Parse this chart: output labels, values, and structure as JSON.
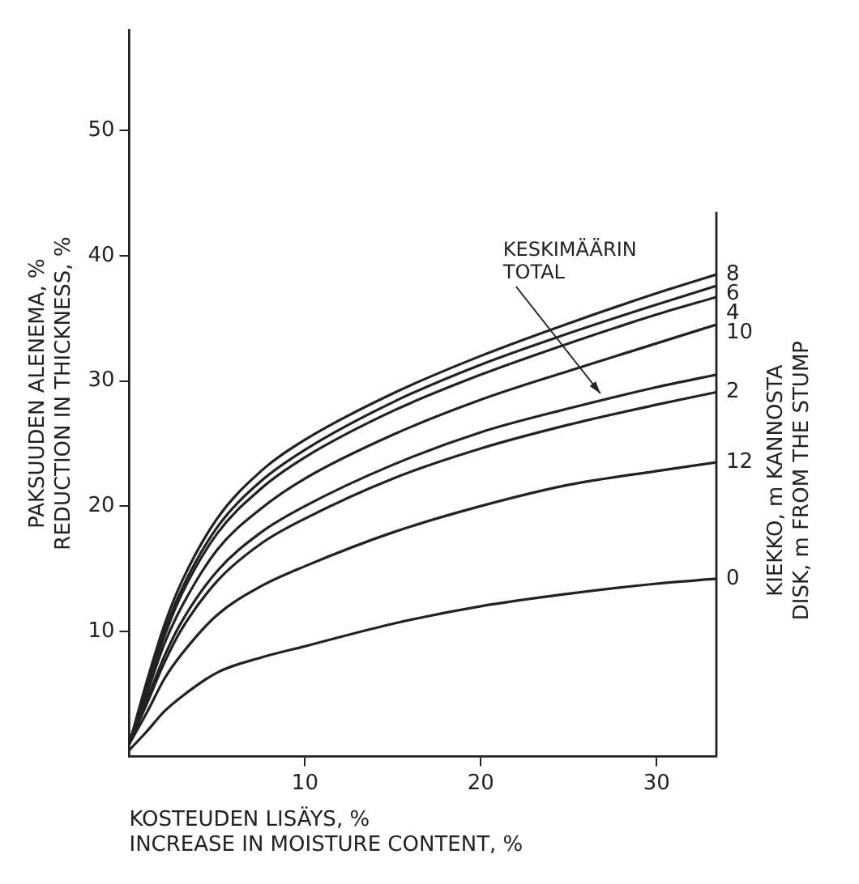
{
  "chart_data": {
    "type": "line",
    "xlabel": "KOSTEUDEN LISÄYS, %\nINCREASE IN MOISTURE CONTENT, %",
    "ylabel": "PAKSUUDEN ALENEMA, %\nREDUCTION IN THICKNESS, %",
    "legend_title": "KIEKKO, m KANNOSTA\nDISK, m FROM THE STUMP",
    "x": [
      0,
      1,
      2,
      3,
      5,
      7.5,
      10,
      15,
      20,
      25,
      30,
      33.4
    ],
    "series": [
      {
        "name": "8",
        "color": "#222222",
        "values": [
          1,
          6,
          10.5,
          14,
          19,
          22.8,
          25.3,
          29,
          32,
          34.6,
          37,
          38.5
        ]
      },
      {
        "name": "6",
        "color": "#222222",
        "values": [
          1,
          5.6,
          10,
          13.4,
          18.3,
          22,
          24.5,
          28.3,
          31.3,
          33.8,
          36.1,
          37.6
        ]
      },
      {
        "name": "4",
        "color": "#222222",
        "values": [
          1,
          5.4,
          9.6,
          13,
          17.8,
          21.4,
          23.9,
          27.6,
          30.5,
          33,
          35.3,
          36.7
        ]
      },
      {
        "name": "10",
        "color": "#222222",
        "values": [
          1,
          5,
          9,
          12,
          16.5,
          19.8,
          22.2,
          25.7,
          28.5,
          30.8,
          33,
          34.5
        ]
      },
      {
        "color": "#222222",
        "values": [
          1,
          4.5,
          8,
          10.8,
          14.8,
          17.9,
          20,
          23.3,
          25.9,
          27.8,
          29.5,
          30.5
        ]
      },
      {
        "name": "2",
        "color": "#222222",
        "values": [
          1,
          4.2,
          7.5,
          10.2,
          14,
          17,
          19,
          22.2,
          24.6,
          26.5,
          28.1,
          29.1
        ]
      },
      {
        "name": "12",
        "color": "#222222",
        "values": [
          1,
          3.5,
          6.2,
          8.2,
          11.3,
          13.6,
          15.2,
          17.9,
          20,
          21.7,
          22.8,
          23.5
        ]
      },
      {
        "name": "0",
        "color": "#222222",
        "values": [
          0.5,
          2,
          3.6,
          4.8,
          6.7,
          7.9,
          8.8,
          10.6,
          12,
          13,
          13.8,
          14.2
        ]
      }
    ],
    "annotations": [
      {
        "text": "KESKIMÄÄRIN\nTOTAL",
        "x": 26.8,
        "y": 29
      }
    ],
    "xlim": [
      0,
      33.4
    ],
    "ylim": [
      0,
      58
    ],
    "xticks": [
      10,
      20,
      30
    ],
    "yticks": [
      10,
      20,
      30,
      40,
      50
    ],
    "grid": false,
    "marker": "none",
    "line_style": "solid"
  }
}
